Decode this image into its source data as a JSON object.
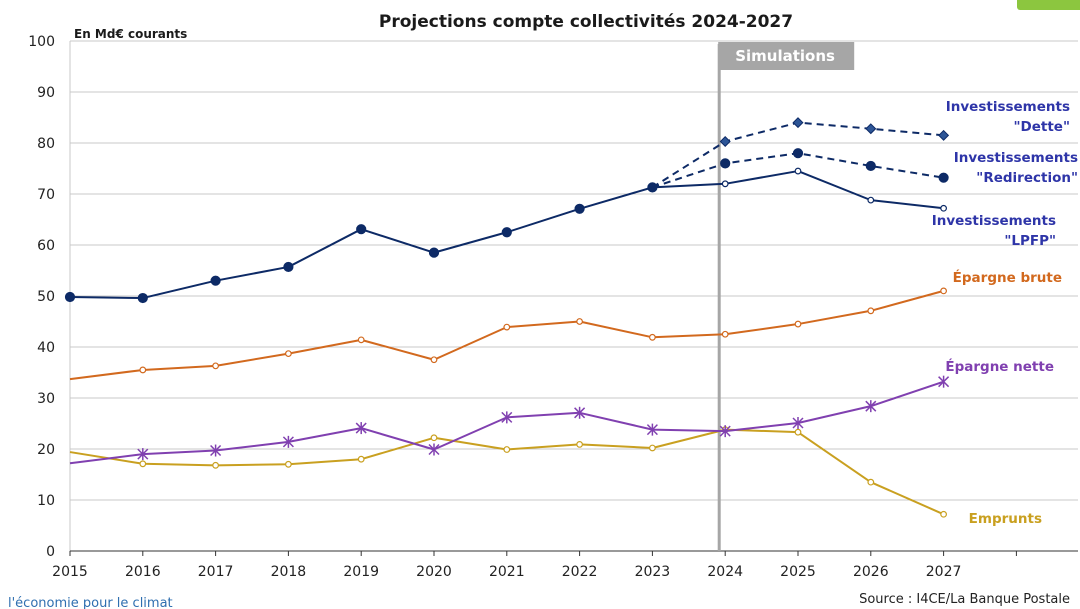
{
  "colors": {
    "investment": "#0d2a66",
    "investment_label": "#2e35a8",
    "dette": "#2d5596",
    "epargne_brute": "#d2691e",
    "epargne_nette": "#8040b0",
    "emprunts": "#c9a020",
    "simulation_band": "#a6a6a6",
    "source_link": "#2f6fb0",
    "corner_tag": "#8cc63f"
  },
  "footer": {
    "left_text": "l'économie pour le climat",
    "source": "Source : I4CE/La Banque Postale"
  },
  "chart_data": {
    "type": "line",
    "title": "Projections compte collectivités 2024-2027",
    "unit_label": "En Md€ courants",
    "simulation_label": "Simulations",
    "simulation_start": 2024,
    "x": [
      2015,
      2016,
      2017,
      2018,
      2019,
      2020,
      2021,
      2022,
      2023,
      2024,
      2025,
      2026,
      2027
    ],
    "x_tick_labels": [
      "2015",
      "2016",
      "2017",
      "2018",
      "2019",
      "2020",
      "2021",
      "2022",
      "2023",
      "2024",
      "2025",
      "2026",
      "2027"
    ],
    "ylim": [
      0,
      100
    ],
    "y_ticks": [
      0,
      10,
      20,
      30,
      40,
      50,
      60,
      70,
      80,
      90,
      100
    ],
    "grid": true,
    "series": [
      {
        "key": "historique",
        "label": "",
        "color_key": "investment",
        "style": "solid",
        "marker": "dot",
        "x": [
          2015,
          2016,
          2017,
          2018,
          2019,
          2020,
          2021,
          2022,
          2023
        ],
        "values": [
          49.8,
          49.6,
          53.0,
          55.7,
          63.1,
          58.5,
          62.5,
          67.1,
          71.3
        ]
      },
      {
        "key": "lpfp",
        "label": "Investissements \"LPFP\"",
        "label_lines": [
          "Investissements",
          "\"LPFP\""
        ],
        "color_key": "investment",
        "label_color_key": "investment_label",
        "style": "solid",
        "marker": "open",
        "x": [
          2023,
          2024,
          2025,
          2026,
          2027
        ],
        "values": [
          71.3,
          72.0,
          74.5,
          68.8,
          67.2
        ]
      },
      {
        "key": "redirection",
        "label": "Investissements \"Redirection\"",
        "label_lines": [
          "Investissements",
          "\"Redirection\""
        ],
        "color_key": "investment",
        "label_color_key": "investment_label",
        "style": "dashed",
        "marker": "dot",
        "x": [
          2023,
          2024,
          2025,
          2026,
          2027
        ],
        "values": [
          71.3,
          76.0,
          78.0,
          75.5,
          73.2
        ]
      },
      {
        "key": "dette",
        "label": "Investissements \"Dette\"",
        "label_lines": [
          "Investissements",
          "\"Dette\""
        ],
        "color_key": "investment",
        "label_color_key": "investment_label",
        "marker_color_key": "dette",
        "style": "dashed",
        "marker": "diamond",
        "x": [
          2023,
          2024,
          2025,
          2026,
          2027
        ],
        "values": [
          71.3,
          80.3,
          84.0,
          82.8,
          81.5
        ]
      },
      {
        "key": "epargne_brute",
        "label": "Épargne brute",
        "label_lines": [
          "Épargne brute"
        ],
        "color_key": "epargne_brute",
        "label_color_key": "epargne_brute",
        "style": "solid",
        "marker": "open",
        "x": [
          2015,
          2016,
          2017,
          2018,
          2019,
          2020,
          2021,
          2022,
          2023,
          2024,
          2025,
          2026,
          2027
        ],
        "values": [
          33.7,
          35.5,
          36.3,
          38.7,
          41.4,
          37.5,
          43.9,
          45.0,
          41.9,
          42.5,
          44.5,
          47.1,
          51.0
        ]
      },
      {
        "key": "epargne_nette",
        "label": "Épargne nette",
        "label_lines": [
          "Épargne nette"
        ],
        "color_key": "epargne_nette",
        "label_color_key": "epargne_nette",
        "style": "solid",
        "marker": "star",
        "x": [
          2015,
          2016,
          2017,
          2018,
          2019,
          2020,
          2021,
          2022,
          2023,
          2024,
          2025,
          2026,
          2027
        ],
        "values": [
          17.2,
          19.0,
          19.7,
          21.4,
          24.1,
          19.9,
          26.2,
          27.1,
          23.8,
          23.5,
          25.1,
          28.4,
          33.2
        ]
      },
      {
        "key": "emprunts",
        "label": "Emprunts",
        "label_lines": [
          "Emprunts"
        ],
        "color_key": "emprunts",
        "label_color_key": "emprunts",
        "style": "solid",
        "marker": "open",
        "x": [
          2015,
          2016,
          2017,
          2018,
          2019,
          2020,
          2021,
          2022,
          2023,
          2024,
          2025,
          2026,
          2027
        ],
        "values": [
          19.4,
          17.1,
          16.8,
          17.0,
          18.0,
          22.2,
          19.9,
          20.9,
          20.2,
          23.8,
          23.3,
          13.5,
          7.2
        ]
      }
    ]
  }
}
